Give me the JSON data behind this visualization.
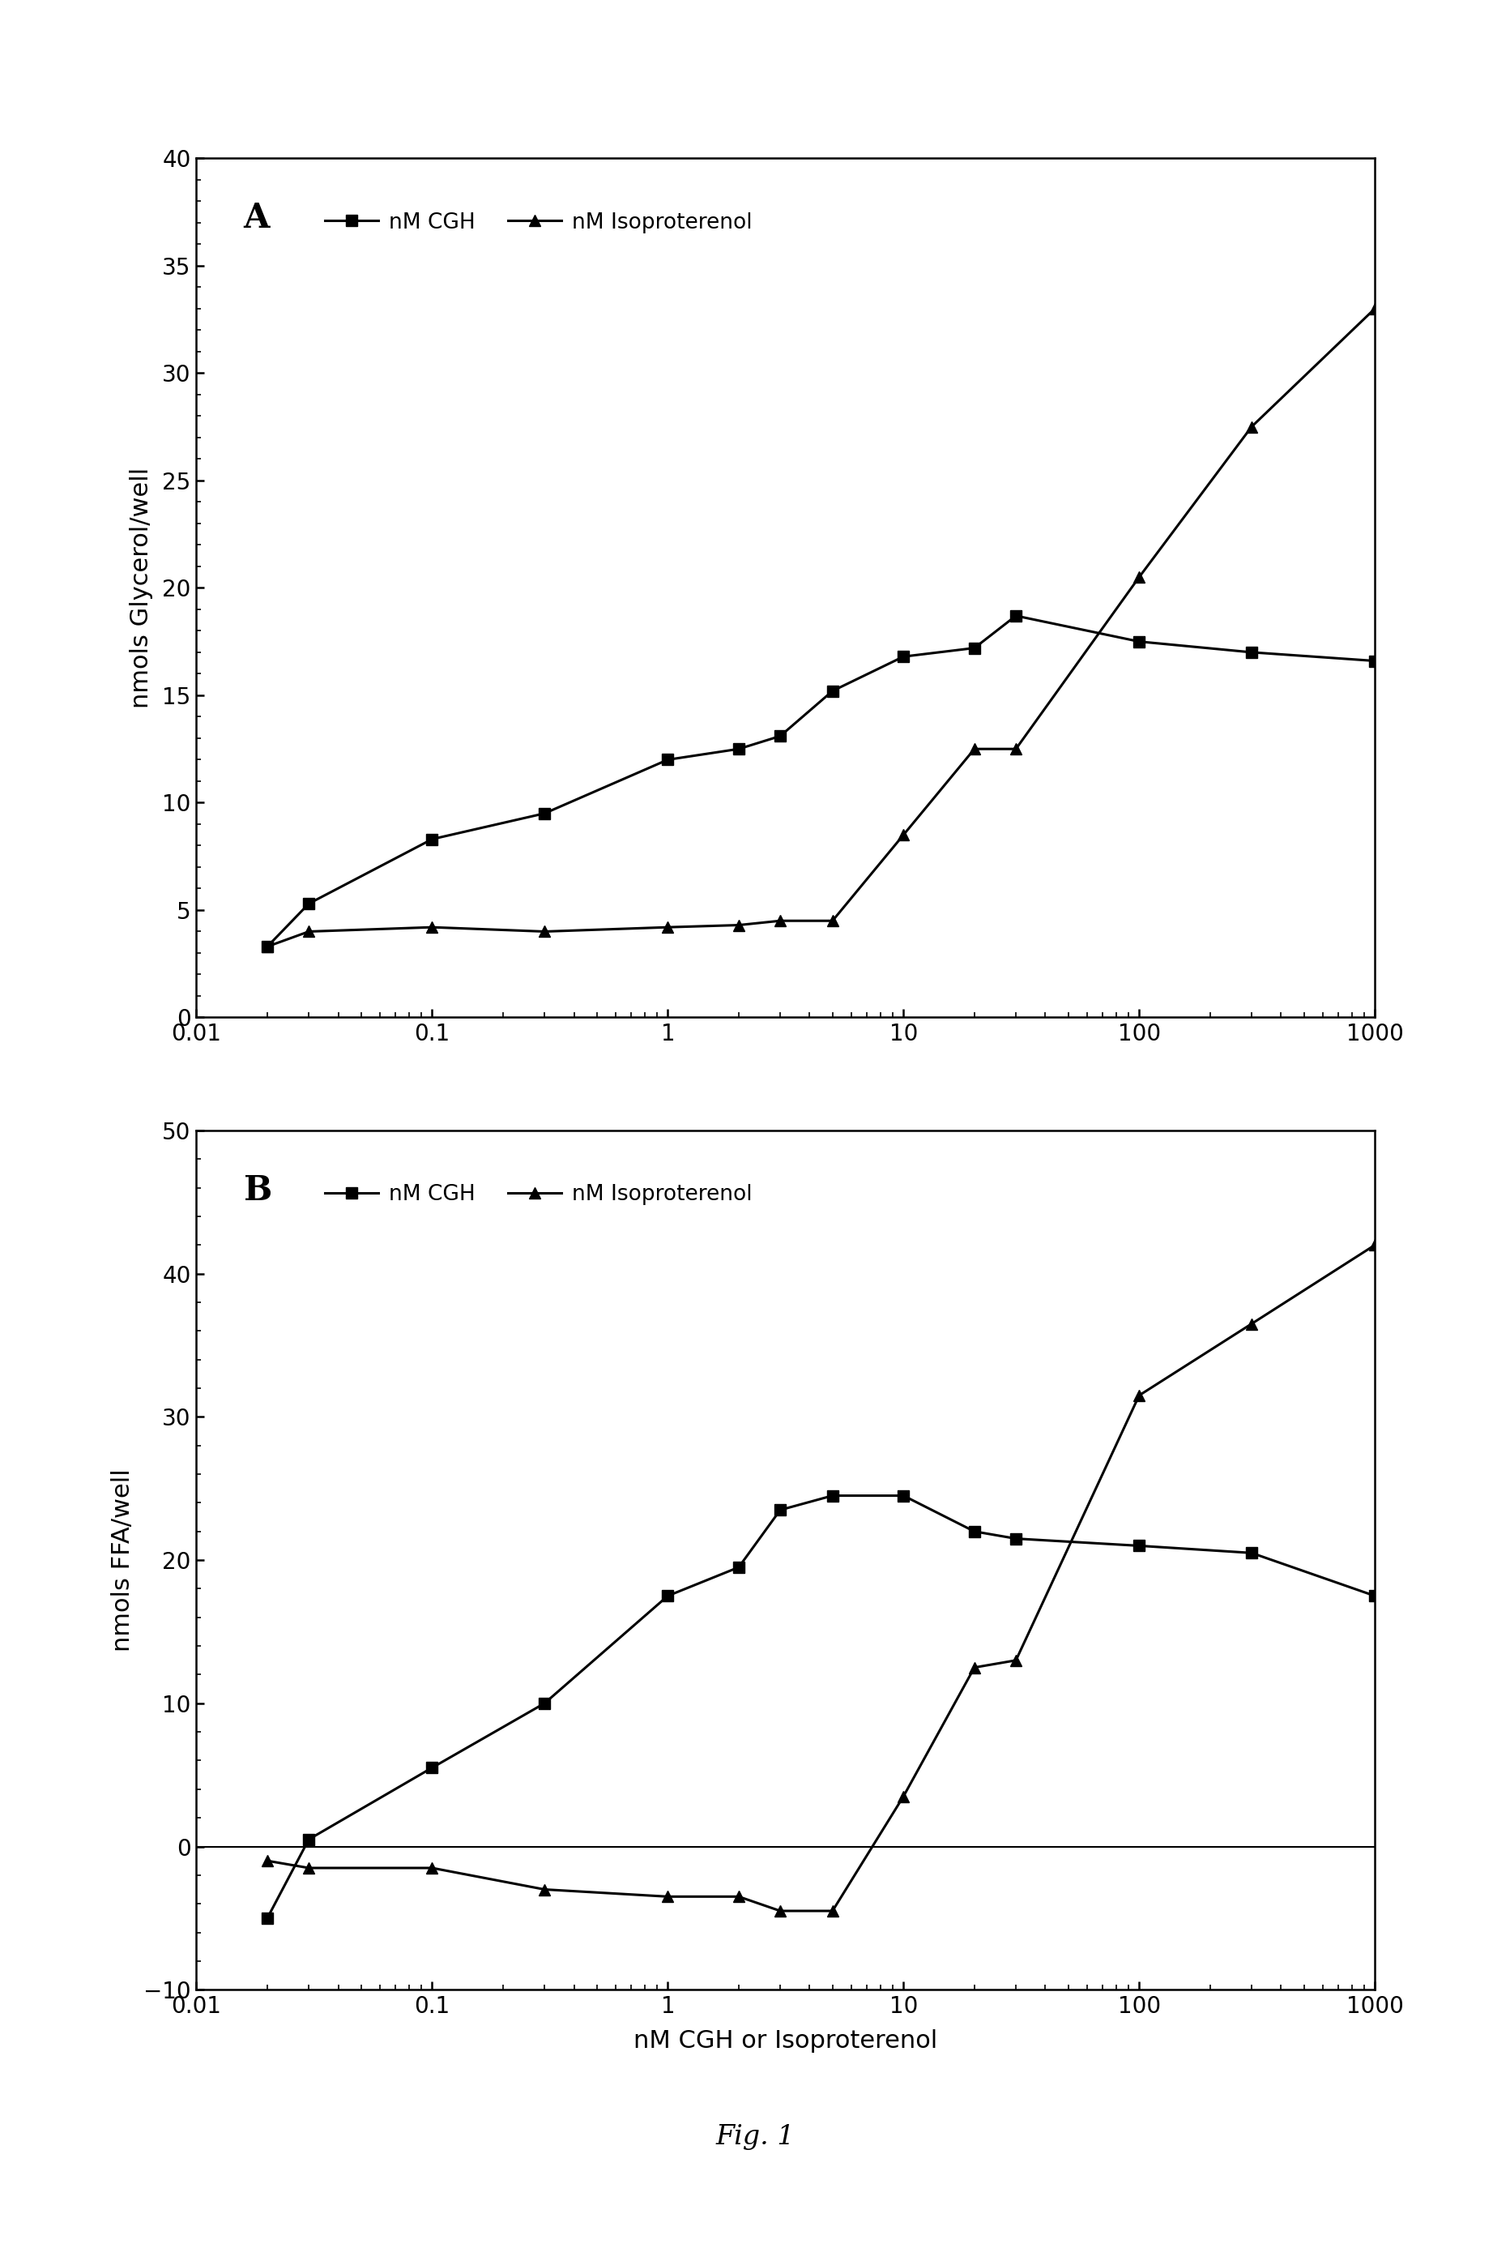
{
  "panel_A": {
    "label": "A",
    "ylabel": "nmols Glycerol/well",
    "ylim": [
      0,
      40
    ],
    "yticks": [
      0,
      5,
      10,
      15,
      20,
      25,
      30,
      35,
      40
    ],
    "xlim": [
      0.01,
      1000
    ],
    "cgh_x": [
      0.02,
      0.03,
      0.1,
      0.3,
      1,
      2,
      3,
      5,
      10,
      20,
      30,
      100,
      300,
      1000
    ],
    "cgh_y": [
      3.3,
      5.3,
      8.3,
      9.5,
      12.0,
      12.5,
      13.1,
      15.2,
      16.8,
      17.2,
      18.7,
      17.5,
      17.0,
      16.6
    ],
    "iso_x": [
      0.02,
      0.03,
      0.1,
      0.3,
      1,
      2,
      3,
      5,
      10,
      20,
      30,
      100,
      300,
      1000
    ],
    "iso_y": [
      3.3,
      4.0,
      4.2,
      4.0,
      4.2,
      4.3,
      4.5,
      4.5,
      8.5,
      12.5,
      12.5,
      20.5,
      27.5,
      33.0
    ]
  },
  "panel_B": {
    "label": "B",
    "ylabel": "nmols FFA/well",
    "xlabel": "nM CGH or Isoproterenol",
    "ylim": [
      -10,
      50
    ],
    "yticks": [
      -10,
      0,
      10,
      20,
      30,
      40,
      50
    ],
    "xlim": [
      0.01,
      1000
    ],
    "cgh_x": [
      0.02,
      0.03,
      0.1,
      0.3,
      1,
      2,
      3,
      5,
      10,
      20,
      30,
      100,
      300,
      1000
    ],
    "cgh_y": [
      -5.0,
      0.5,
      5.5,
      10.0,
      17.5,
      19.5,
      23.5,
      24.5,
      24.5,
      22.0,
      21.5,
      21.0,
      20.5,
      17.5
    ],
    "iso_x": [
      0.02,
      0.03,
      0.1,
      0.3,
      1,
      2,
      3,
      5,
      10,
      20,
      30,
      100,
      300,
      1000
    ],
    "iso_y": [
      -1.0,
      -1.5,
      -1.5,
      -3.0,
      -3.5,
      -3.5,
      -4.5,
      -4.5,
      3.5,
      12.5,
      13.0,
      31.5,
      36.5,
      42.0
    ]
  },
  "fig_label": "Fig. 1",
  "legend_cgh": "nM CGH",
  "legend_iso": "nM Isoproterenol",
  "line_color": "#000000",
  "bg_color": "#ffffff"
}
